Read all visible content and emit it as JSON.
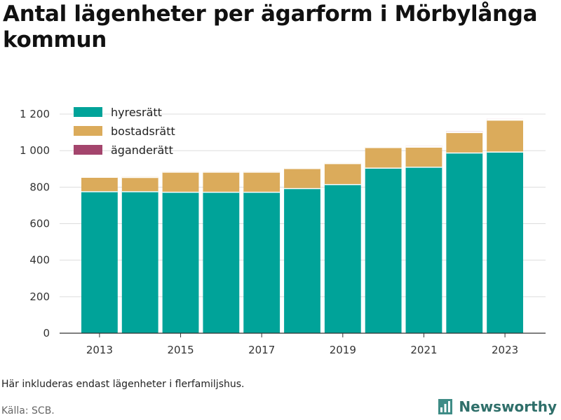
{
  "title": "Antal lägenheter per ägarform i Mörbylånga kommun",
  "note": "Här inkluderas endast lägenheter i flerfamiljshus.",
  "source": "Källa: SCB.",
  "brand": {
    "name": "Newsworthy",
    "icon": "bar-chart-logo-icon"
  },
  "chart_data": {
    "type": "bar",
    "stacked": true,
    "title": "",
    "xlabel": "",
    "ylabel": "",
    "categories": [
      "2013",
      "2014",
      "2015",
      "2016",
      "2017",
      "2018",
      "2019",
      "2020",
      "2021",
      "2022",
      "2023"
    ],
    "x_tick_labels": [
      "2013",
      "2015",
      "2017",
      "2019",
      "2021",
      "2023"
    ],
    "y_ticks": [
      0,
      200,
      400,
      600,
      800,
      1000,
      1200
    ],
    "y_tick_labels": [
      "0",
      "200",
      "400",
      "600",
      "800",
      "1 000",
      "1 200"
    ],
    "ylim": [
      0,
      1250
    ],
    "grid": true,
    "legend_position": "top-left",
    "series": [
      {
        "name": "hyresrätt",
        "color": "#00a399",
        "values": [
          778,
          778,
          775,
          775,
          775,
          795,
          817,
          907,
          912,
          990,
          995
        ]
      },
      {
        "name": "bostadsrätt",
        "color": "#dbab5b",
        "values": [
          79,
          78,
          110,
          110,
          110,
          110,
          115,
          113,
          110,
          112,
          175
        ]
      },
      {
        "name": "äganderätt",
        "color": "#a4456d",
        "values": [
          0,
          0,
          0,
          0,
          0,
          0,
          0,
          0,
          5,
          5,
          5
        ]
      }
    ]
  }
}
